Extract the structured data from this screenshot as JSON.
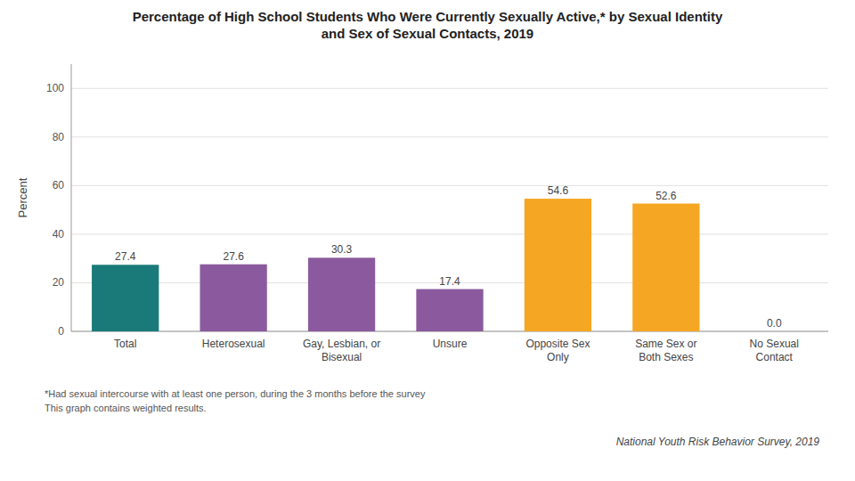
{
  "chart_data": {
    "type": "bar",
    "title": "Percentage of High School Students Who Were Currently Sexually Active,* by Sexual Identity\nand Sex of Sexual Contacts, 2019",
    "categories": [
      "Total",
      "Heterosexual",
      "Gay, Lesbian, or\nBisexual",
      "Unsure",
      "Opposite Sex\nOnly",
      "Same Sex or\nBoth Sexes",
      "No Sexual\nContact"
    ],
    "values": [
      27.4,
      27.6,
      30.3,
      17.4,
      54.6,
      52.6,
      0.0
    ],
    "value_labels": [
      "27.4",
      "27.6",
      "30.3",
      "17.4",
      "54.6",
      "52.6",
      "0.0"
    ],
    "data_labels": true,
    "colors": [
      "#1a7a7a",
      "#8b5a9e",
      "#8b5a9e",
      "#8b5a9e",
      "#f5a623",
      "#f5a623",
      "#f5a623"
    ],
    "ylabel": "Percent",
    "ylim": [
      0,
      110
    ],
    "yticks": [
      0,
      20,
      40,
      60,
      80,
      100
    ],
    "grid": true,
    "annotations": [
      "*Had sexual intercourse with at least one person, during the 3 months before the survey",
      "This graph contains weighted results.",
      "National Youth Risk Behavior Survey, 2019"
    ]
  }
}
